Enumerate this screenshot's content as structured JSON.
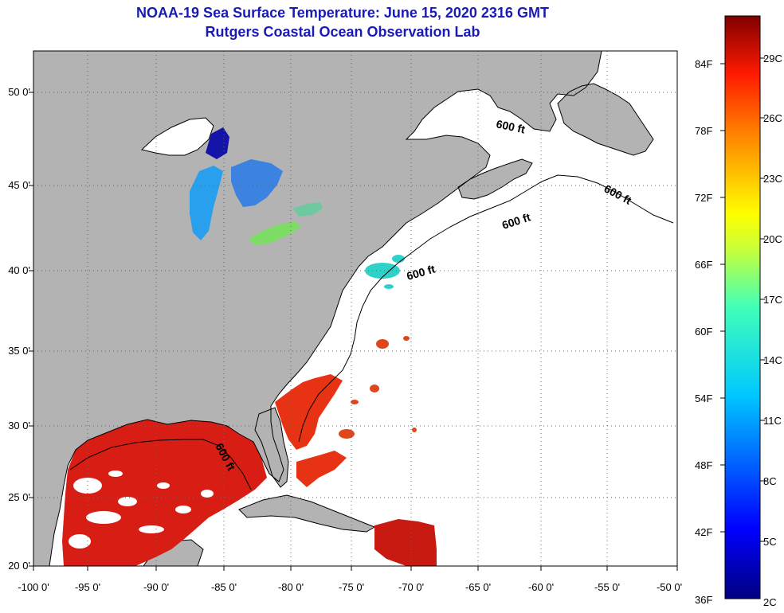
{
  "title": "NOAA-19 Sea Surface Temperature:  June 15, 2020 2316 GMT",
  "subtitle": "Rutgers Coastal Ocean Observation Lab",
  "lat_labels": [
    "50 0'",
    "45 0'",
    "40 0'",
    "35 0'",
    "30 0'",
    "25 0'",
    "20 0'"
  ],
  "lon_labels": [
    "-100 0'",
    "-95 0'",
    "-90 0'",
    "-85 0'",
    "-80 0'",
    "-75 0'",
    "-70 0'",
    "-65 0'",
    "-60 0'",
    "-55 0'",
    "-50 0'"
  ],
  "contour_labels": [
    "600 ft",
    "600 ft",
    "600 ft",
    "600 ft",
    "600 ft"
  ],
  "colorbar": {
    "fahrenheit": [
      "84F",
      "78F",
      "72F",
      "66F",
      "60F",
      "54F",
      "48F",
      "42F",
      "36F"
    ],
    "celsius": [
      "29C",
      "26C",
      "23C",
      "20C",
      "17C",
      "14C",
      "11C",
      "8C",
      "5C",
      "2C"
    ]
  },
  "colors": {
    "title": "#1a1ab4",
    "land": "#b3b3b3",
    "ocean": "#ffffff",
    "warm": "#d81e14"
  }
}
